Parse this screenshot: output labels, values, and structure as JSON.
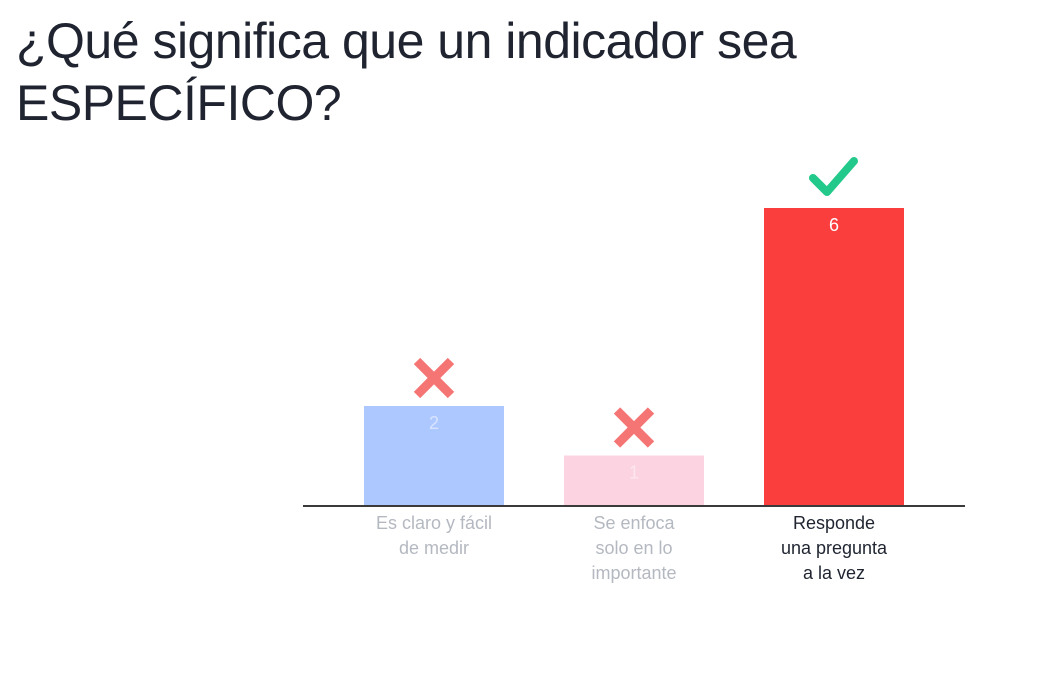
{
  "slide": {
    "title_line1": "¿Qué significa que un indicador sea",
    "title_line2": "ESPECÍFICO?"
  },
  "chart_data": {
    "type": "bar",
    "categories": [
      "Es claro y fácil\nde medir",
      "Se enfoca\nsolo en lo\nimportante",
      "Responde\nuna pregunta\na la vez"
    ],
    "values": [
      2,
      1,
      6
    ],
    "value_labels": [
      "2",
      "1",
      "6"
    ],
    "colors": [
      "#adc8ff",
      "#fcd3e1",
      "#fa3e3e"
    ],
    "value_label_colors": [
      "#d8e4ff",
      "#fde6ee",
      "#ffffff"
    ],
    "label_colors": [
      "#b4b8c0",
      "#b4b8c0",
      "#1f2430"
    ],
    "markers": [
      "cross-icon",
      "cross-icon",
      "check-icon"
    ],
    "marker_colors": {
      "cross-icon": "#f57474",
      "check-icon": "#22c98a"
    },
    "axis_color": "#3a3a3a",
    "ylim": [
      0,
      6
    ],
    "grid": false
  }
}
